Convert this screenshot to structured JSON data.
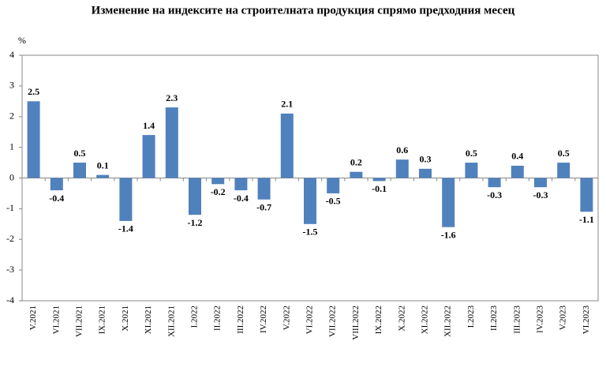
{
  "chart_data": {
    "type": "bar",
    "title": "Изменение на индексите на строителната продукция спрямо предходния месец",
    "y_label": "%",
    "categories": [
      "V.2021",
      "VI.2021",
      "VII.2021",
      "IX.2021",
      "X.2021",
      "XI.2021",
      "XII.2021",
      "I.2022",
      "II.2022",
      "III.2022",
      "IV.2022",
      "V.2022",
      "VI.2022",
      "VII.2022",
      "VIII.2022",
      "IX.2022",
      "X.2022",
      "XI.2022",
      "XII.2022",
      "I.2023",
      "II.2023",
      "III.2023",
      "IV.2023",
      "V.2023",
      "VI.2023"
    ],
    "values": [
      2.5,
      -0.4,
      0.5,
      0.1,
      -1.4,
      1.4,
      2.3,
      -1.2,
      -0.2,
      -0.4,
      -0.7,
      2.1,
      -1.5,
      -0.5,
      0.2,
      -0.1,
      0.6,
      0.3,
      -1.6,
      0.5,
      -0.3,
      0.4,
      -0.3,
      0.5,
      -1.1
    ],
    "color": "#4f81bd",
    "ylim": [
      -4,
      4
    ],
    "yticks": [
      -4,
      -3,
      -2,
      -1,
      0,
      1,
      2,
      3,
      4
    ],
    "grid": false
  }
}
